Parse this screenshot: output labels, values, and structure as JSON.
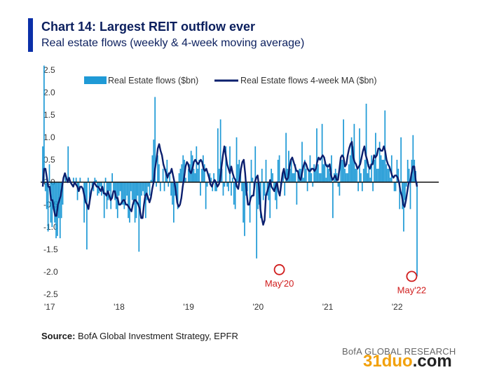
{
  "header": {
    "title": "Chart 14: Largest REIT outflow ever",
    "subtitle": "Real estate flows (weekly & 4-week moving average)"
  },
  "source": {
    "label": "Source:",
    "text": "BofA Global Investment Strategy, EPFR"
  },
  "footer": {
    "brand": "BofA GLOBAL RESEARCH"
  },
  "watermark": {
    "part1": "31duo",
    "part2": ".com"
  },
  "colors": {
    "bars": "#1f9ad6",
    "ma_line": "#0b1f6e",
    "annotation": "#d01c1c",
    "title": "#0b1f5e"
  },
  "chart_data": {
    "type": "bar",
    "yticks": [
      "2.5",
      "2.0",
      "1.5",
      "1.0",
      "0.5",
      "0.0",
      "-0.5",
      "-1.0",
      "-1.5",
      "-2.0",
      "-2.5"
    ],
    "ylim": [
      -2.5,
      2.5
    ],
    "xticks": [
      {
        "label": "'17",
        "week": 0
      },
      {
        "label": "'18",
        "week": 52
      },
      {
        "label": "'19",
        "week": 104
      },
      {
        "label": "'20",
        "week": 156
      },
      {
        "label": "'21",
        "week": 208
      },
      {
        "label": "'22",
        "week": 260
      }
    ],
    "series": [
      {
        "name": "Real Estate flows ($bn)",
        "kind": "bar",
        "values": [
          0.8,
          2.6,
          -0.2,
          -0.6,
          -1.1,
          0.4,
          -0.9,
          -1.0,
          -0.6,
          -0.9,
          -1.25,
          -1.2,
          -0.8,
          -1.25,
          -0.8,
          -0.5,
          0.0,
          0.2,
          0.0,
          0.8,
          0.0,
          0.0,
          0.0,
          0.1,
          -0.05,
          0.1,
          -0.4,
          -0.2,
          0.1,
          0.0,
          0.0,
          -0.9,
          -0.4,
          -1.5,
          0.1,
          -0.5,
          0.0,
          -0.1,
          -0.2,
          0.1,
          0.05,
          -0.3,
          -0.25,
          -0.1,
          -0.3,
          0.0,
          -0.8,
          0.1,
          -0.6,
          -0.4,
          -0.2,
          -0.6,
          0.2,
          -0.2,
          -0.4,
          -0.6,
          -0.8,
          -0.3,
          -0.2,
          -0.5,
          -0.5,
          -0.6,
          -0.4,
          -0.3,
          -0.8,
          -0.9,
          -0.2,
          -0.4,
          -0.5,
          -0.9,
          -0.8,
          -0.3,
          -1.55,
          -0.7,
          -0.3,
          -0.2,
          -0.3,
          -0.8,
          -0.4,
          -0.1,
          -0.3,
          0.05,
          0.6,
          0.95,
          1.9,
          -0.1,
          0.6,
          0.4,
          -0.2,
          0.0,
          0.3,
          -0.2,
          0.3,
          0.5,
          -0.1,
          0.2,
          -0.3,
          -0.5,
          -0.9,
          -0.3,
          -0.3,
          -0.6,
          0.2,
          0.3,
          0.4,
          0.6,
          0.5,
          0.1,
          0.0,
          0.3,
          0.4,
          0.7,
          0.6,
          0.3,
          0.2,
          0.8,
          0.3,
          0.5,
          -0.3,
          0.3,
          0.6,
          0.4,
          -0.6,
          -0.1,
          0.0,
          0.2,
          0.1,
          -0.2,
          0.2,
          -0.2,
          -0.2,
          1.2,
          0.3,
          1.4,
          0.3,
          -0.3,
          -0.1,
          0.8,
          -0.1,
          -0.2,
          0.8,
          -0.3,
          0.1,
          -0.5,
          -0.6,
          1.0,
          0.4,
          0.5,
          0.3,
          -0.2,
          -0.9,
          -1.2,
          -0.3,
          -0.2,
          0.0,
          -0.9,
          0.5,
          0.1,
          -0.3,
          0.8,
          -1.7,
          -0.6,
          -0.5,
          -0.8,
          0.3,
          -0.4,
          -0.3,
          0.5,
          -0.3,
          -0.4,
          -0.8,
          0.3,
          0.2,
          -0.2,
          -0.4,
          -0.6,
          0.5,
          0.6,
          -0.2,
          0.0,
          0.3,
          -0.3,
          1.1,
          0.3,
          0.7,
          0.3,
          0.5,
          0.2,
          0.2,
          0.4,
          -0.5,
          0.2,
          0.3,
          0.3,
          0.9,
          0.1,
          0.5,
          0.3,
          -0.2,
          0.3,
          0.6,
          0.2,
          -0.1,
          0.4,
          0.3,
          1.2,
          0.4,
          0.2,
          0.2,
          1.3,
          0.4,
          0.5,
          0.1,
          0.4,
          0.3,
          0.2,
          0.6,
          -0.8,
          0.2,
          0.3,
          0.2,
          -0.1,
          -0.3,
          0.5,
          0.5,
          1.4,
          0.3,
          0.2,
          0.2,
          0.4,
          0.6,
          1.0,
          0.8,
          1.3,
          0.3,
          0.3,
          -0.2,
          1.2,
          0.2,
          -0.2,
          0.3,
          0.5,
          1.75,
          0.2,
          0.4,
          0.1,
          0.6,
          -0.2,
          0.5,
          1.1,
          0.3,
          0.3,
          0.9,
          0.6,
          0.5,
          0.5,
          1.6,
          0.4,
          0.3,
          0.3,
          0.1,
          0.6,
          0.0,
          -0.2,
          -0.2,
          0.5,
          0.3,
          -0.6,
          1.0,
          -0.6,
          -1.1,
          -0.4,
          -0.1,
          0.5,
          0.3,
          -0.6,
          0.5,
          1.05,
          0.5,
          0.25,
          -2.1
        ]
      },
      {
        "name": "Real Estate flows 4-week MA ($bn)",
        "kind": "line",
        "values": [
          -0.1,
          0.3,
          0.3,
          0.1,
          -0.1,
          -0.1,
          -0.4,
          -0.4,
          -0.6,
          -0.75,
          -0.75,
          -0.5,
          -0.4,
          -0.3,
          -0.1,
          0.1,
          0.2,
          0.1,
          0.0,
          0.1,
          0.0,
          -0.05,
          -0.1,
          0.0,
          -0.05,
          -0.1,
          -0.2,
          -0.1,
          -0.1,
          -0.15,
          -0.3,
          -0.45,
          -0.5,
          -0.6,
          -0.4,
          -0.2,
          -0.1,
          0.0,
          -0.05,
          -0.1,
          -0.1,
          -0.15,
          -0.2,
          -0.1,
          -0.25,
          -0.25,
          -0.3,
          -0.2,
          -0.3,
          -0.4,
          -0.35,
          -0.2,
          -0.2,
          -0.35,
          -0.35,
          -0.5,
          -0.5,
          -0.45,
          -0.4,
          -0.4,
          -0.5,
          -0.5,
          -0.55,
          -0.6,
          -0.65,
          -0.5,
          -0.4,
          -0.4,
          -0.45,
          -0.5,
          -0.6,
          -0.8,
          -0.8,
          -0.5,
          -0.3,
          -0.25,
          -0.35,
          -0.45,
          -0.35,
          -0.15,
          0.0,
          0.3,
          0.5,
          0.75,
          0.85,
          0.7,
          0.6,
          0.4,
          0.3,
          0.2,
          0.1,
          0.2,
          0.2,
          0.3,
          0.15,
          0.0,
          -0.2,
          -0.45,
          -0.55,
          -0.5,
          -0.35,
          -0.1,
          0.1,
          0.35,
          0.45,
          0.4,
          0.25,
          0.2,
          0.3,
          0.45,
          0.5,
          0.45,
          0.4,
          0.45,
          0.5,
          0.45,
          0.3,
          0.25,
          0.3,
          0.2,
          0.1,
          -0.05,
          -0.1,
          0.0,
          0.05,
          0.0,
          -0.1,
          -0.05,
          0.05,
          0.35,
          0.6,
          0.8,
          0.6,
          0.4,
          0.3,
          0.2,
          0.35,
          0.2,
          0.1,
          0.05,
          -0.1,
          -0.15,
          0.05,
          0.3,
          0.45,
          0.5,
          0.2,
          -0.2,
          -0.5,
          -0.5,
          -0.35,
          -0.3,
          -0.3,
          0.0,
          0.1,
          0.15,
          -0.1,
          -0.6,
          -0.8,
          -0.95,
          -0.85,
          -0.3,
          -0.2,
          -0.1,
          0.05,
          -0.1,
          -0.15,
          -0.2,
          -0.1,
          0.0,
          -0.2,
          -0.3,
          -0.05,
          0.2,
          0.3,
          0.1,
          0.05,
          0.1,
          0.35,
          0.5,
          0.55,
          0.45,
          0.35,
          0.25,
          0.25,
          0.1,
          0.05,
          0.2,
          0.35,
          0.45,
          0.4,
          0.3,
          0.25,
          0.25,
          0.3,
          0.3,
          0.25,
          0.3,
          0.45,
          0.55,
          0.5,
          0.55,
          0.6,
          0.55,
          0.4,
          0.35,
          0.35,
          0.4,
          0.15,
          0.05,
          0.1,
          0.15,
          0.05,
          0.05,
          0.3,
          0.55,
          0.6,
          0.55,
          0.35,
          0.4,
          0.6,
          0.75,
          0.85,
          0.9,
          0.55,
          0.45,
          0.4,
          0.3,
          0.35,
          0.4,
          0.55,
          0.7,
          0.8,
          0.6,
          0.5,
          0.35,
          0.3,
          0.4,
          0.4,
          0.6,
          0.55,
          0.6,
          0.75,
          0.75,
          0.7,
          0.7,
          0.8,
          0.7,
          0.5,
          0.4,
          0.35,
          0.25,
          0.15,
          0.1,
          0.15,
          0.15,
          0.1,
          0.0,
          -0.2,
          -0.3,
          -0.5,
          -0.55,
          -0.4,
          -0.2,
          0.0,
          0.0,
          0.2,
          0.35,
          0.35,
          0.05,
          -0.1
        ]
      }
    ],
    "annotations": [
      {
        "label": "May'20",
        "week": 177,
        "value": -1.95
      },
      {
        "label": "May'22",
        "week": 276,
        "value": -2.1
      }
    ]
  }
}
